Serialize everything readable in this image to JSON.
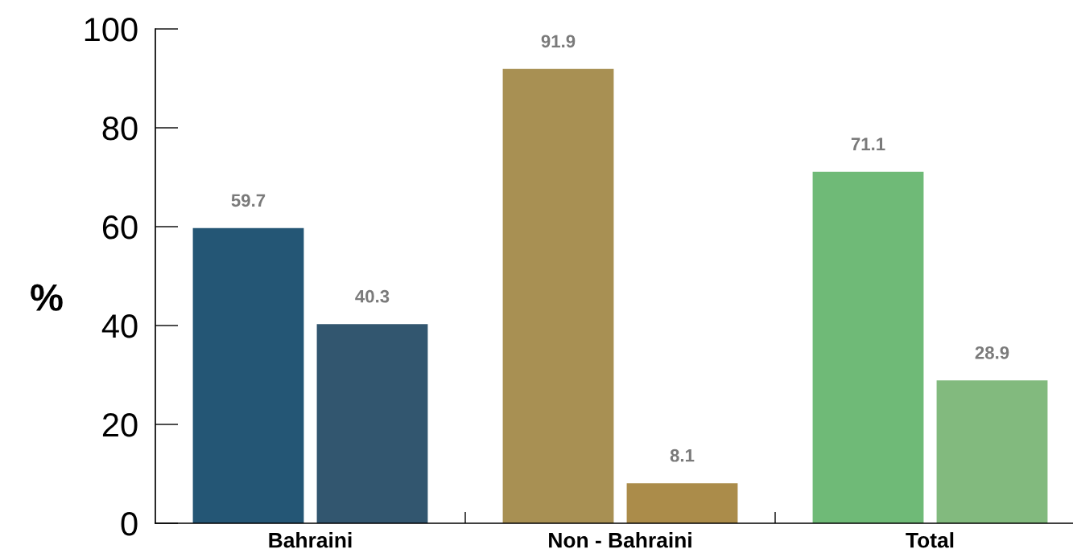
{
  "chart_data": {
    "type": "bar",
    "categories": [
      "Bahraini",
      "Non - Bahraini",
      "Total"
    ],
    "series": [
      {
        "colors": [
          "#245675",
          "#a89053",
          "#6fba77"
        ],
        "values": [
          59.7,
          91.9,
          71.1
        ]
      },
      {
        "colors": [
          "#32566f",
          "#ab8c4a",
          "#82ba7e"
        ],
        "values": [
          40.3,
          8.1,
          28.9
        ]
      }
    ],
    "ylabel": "%",
    "ylim": [
      0,
      100
    ],
    "yticks": [
      0,
      20,
      40,
      60,
      80,
      100
    ],
    "data_labels": true,
    "grid": false,
    "legend": false
  }
}
